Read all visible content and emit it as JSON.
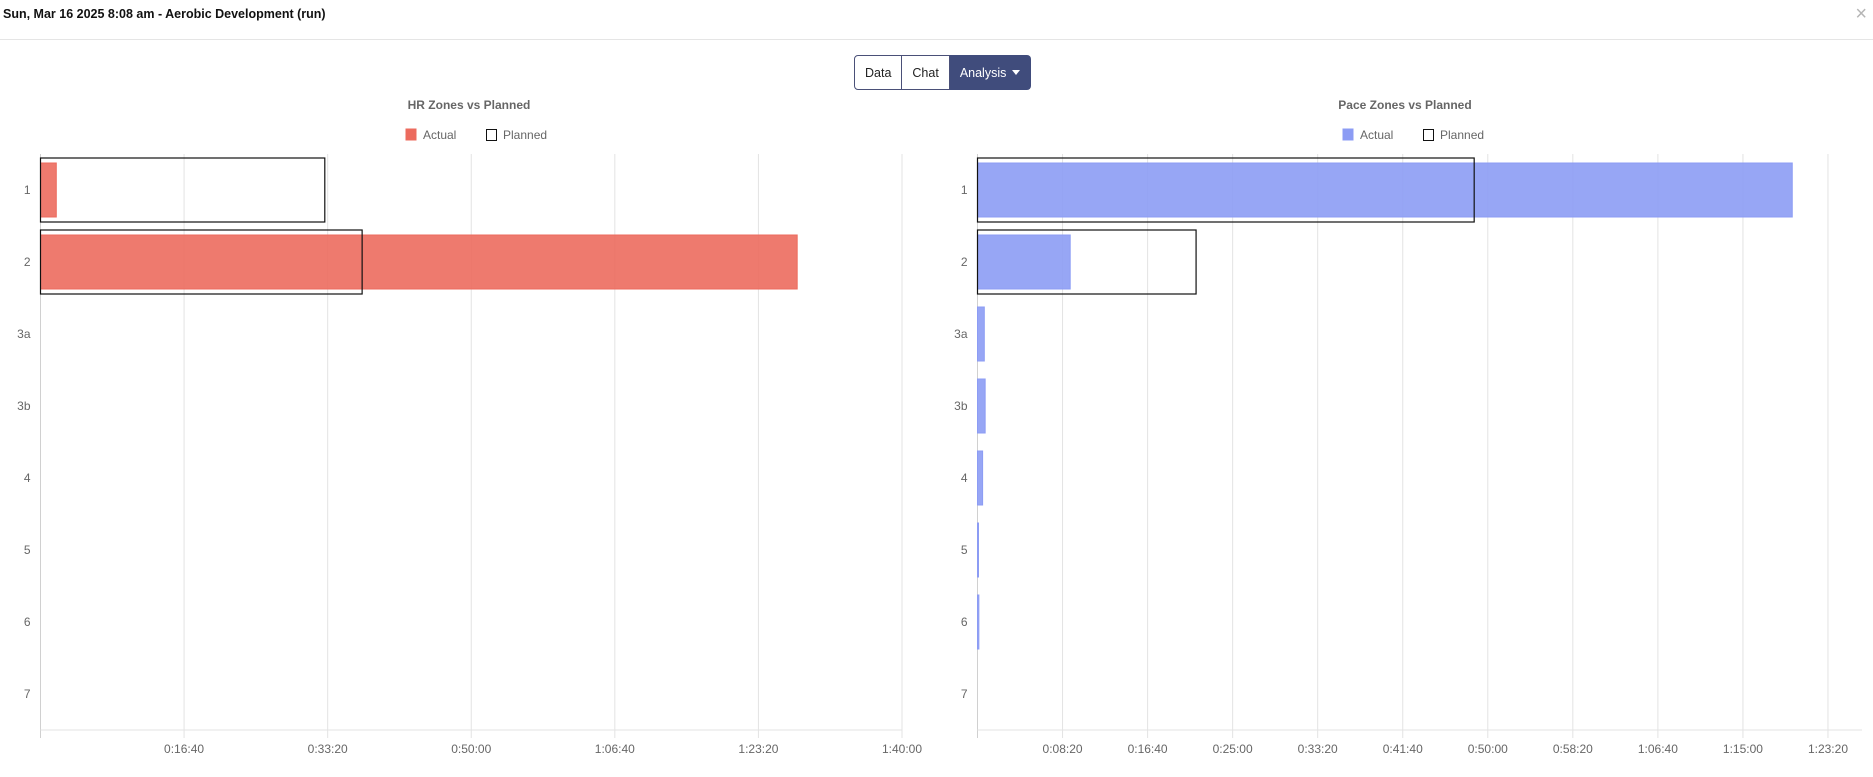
{
  "window": {
    "title": "Sun, Mar 16 2025 8:08 am - Aerobic Development (run)",
    "close_icon": "close-icon"
  },
  "tabs": {
    "data_label": "Data",
    "chat_label": "Chat",
    "analysis_label": "Analysis",
    "active": "Analysis"
  },
  "chart_data": [
    {
      "type": "bar",
      "orientation": "horizontal",
      "title": "HR Zones vs Planned",
      "legend": {
        "placement": "top",
        "actual": "Actual",
        "planned": "Planned"
      },
      "colors": {
        "actual": "#ec6b5e",
        "planned_border": "#111111"
      },
      "categories": [
        "1",
        "2",
        "3a",
        "3b",
        "4",
        "5",
        "6",
        "7"
      ],
      "series": [
        {
          "name": "Actual",
          "values": [
            110,
            5270,
            0,
            0,
            0,
            0,
            0,
            0
          ]
        },
        {
          "name": "Planned",
          "values": [
            1980,
            2240,
            0,
            0,
            0,
            0,
            0,
            0
          ]
        }
      ],
      "x_unit": "seconds",
      "xlim": [
        0,
        6000
      ],
      "x_ticks": [
        1000,
        2000,
        3000,
        4000,
        5000,
        6000
      ],
      "x_tick_labels": [
        "0:16:40",
        "0:33:20",
        "0:50:00",
        "1:06:40",
        "1:23:20",
        "1:40:00"
      ],
      "grid": true
    },
    {
      "type": "bar",
      "orientation": "horizontal",
      "title": "Pace Zones vs Planned",
      "legend": {
        "placement": "top",
        "actual": "Actual",
        "planned": "Planned"
      },
      "colors": {
        "actual": "#8c9cf4",
        "planned_border": "#111111"
      },
      "categories": [
        "1",
        "2",
        "3a",
        "3b",
        "4",
        "5",
        "6",
        "7"
      ],
      "series": [
        {
          "name": "Actual",
          "values": [
            4790,
            545,
            40,
            45,
            30,
            5,
            8,
            0
          ]
        },
        {
          "name": "Planned",
          "values": [
            2920,
            1285,
            0,
            0,
            0,
            0,
            0,
            0
          ]
        }
      ],
      "x_unit": "seconds",
      "xlim": [
        0,
        5200
      ],
      "x_ticks": [
        500,
        1000,
        1500,
        2000,
        2500,
        3000,
        3500,
        4000,
        4500,
        5000
      ],
      "x_tick_labels": [
        "0:08:20",
        "0:16:40",
        "0:25:00",
        "0:33:20",
        "0:41:40",
        "0:50:00",
        "0:58:20",
        "1:06:40",
        "1:15:00",
        "1:23:20"
      ],
      "grid": true
    }
  ]
}
